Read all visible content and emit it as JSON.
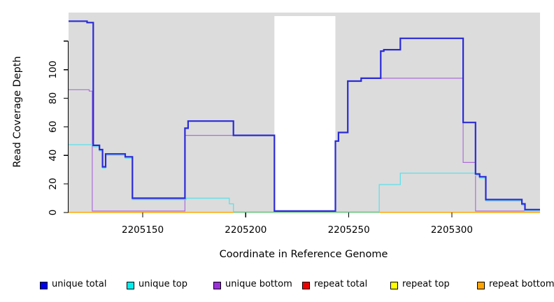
{
  "figure": {
    "x_label": "Coordinate in Reference Genome",
    "y_label": "Read Coverage Depth"
  },
  "chart_data": {
    "type": "line",
    "subtype": "step-coverage-depth",
    "title": "",
    "xlabel": "Coordinate in Reference Genome",
    "ylabel": "Read Coverage Depth",
    "xlim": [
      2205114,
      2205342.8
    ],
    "ylim": [
      0,
      140
    ],
    "grid": false,
    "legend_position": "bottom",
    "panel_background": "#DCDCDC",
    "gap_region": {
      "x1": 2205213.9,
      "x2": 2205243.5,
      "color": "#FFFFFF",
      "note_value_top": 137
    },
    "x_ticks": [
      {
        "value": 2205150,
        "label": "2205150"
      },
      {
        "value": 2205200,
        "label": "2205200"
      },
      {
        "value": 2205250,
        "label": "2205250"
      },
      {
        "value": 2205300,
        "label": "2205300"
      }
    ],
    "y_ticks": [
      {
        "value": 0,
        "label": "0"
      },
      {
        "value": 20,
        "label": "20"
      },
      {
        "value": 40,
        "label": "40"
      },
      {
        "value": 60,
        "label": "60"
      },
      {
        "value": 80,
        "label": "80"
      },
      {
        "value": 100,
        "label": "100"
      },
      {
        "value": 120,
        "label": ""
      }
    ],
    "series": [
      {
        "name": "unique total",
        "color": "#2A2AD8",
        "width": 2.2,
        "points": [
          [
            2205114,
            134
          ],
          [
            2205123,
            134
          ],
          [
            2205123,
            133
          ],
          [
            2205126,
            133
          ],
          [
            2205126,
            47
          ],
          [
            2205129,
            47
          ],
          [
            2205129,
            44
          ],
          [
            2205130.5,
            44
          ],
          [
            2205130.5,
            32
          ],
          [
            2205132,
            32
          ],
          [
            2205132,
            41
          ],
          [
            2205141.5,
            41
          ],
          [
            2205141.5,
            39
          ],
          [
            2205145,
            39
          ],
          [
            2205145,
            10
          ],
          [
            2205170.5,
            10
          ],
          [
            2205170.5,
            59
          ],
          [
            2205172,
            59
          ],
          [
            2205172,
            64
          ],
          [
            2205194,
            64
          ],
          [
            2205194,
            54
          ],
          [
            2205213.9,
            54
          ],
          [
            2205213.9,
            1
          ],
          [
            2205243.5,
            1
          ],
          [
            2205243.5,
            50
          ],
          [
            2205245,
            50
          ],
          [
            2205245,
            56
          ],
          [
            2205249.5,
            56
          ],
          [
            2205249.5,
            92
          ],
          [
            2205256,
            92
          ],
          [
            2205256,
            94
          ],
          [
            2205265.5,
            94
          ],
          [
            2205265.5,
            113
          ],
          [
            2205267,
            113
          ],
          [
            2205267,
            114
          ],
          [
            2205275,
            114
          ],
          [
            2205275,
            122
          ],
          [
            2205305.5,
            122
          ],
          [
            2205305.5,
            63
          ],
          [
            2205311.5,
            63
          ],
          [
            2205311.5,
            27
          ],
          [
            2205313.5,
            27
          ],
          [
            2205313.5,
            25
          ],
          [
            2205316.5,
            25
          ],
          [
            2205316.5,
            9
          ],
          [
            2205334,
            9
          ],
          [
            2205334,
            6
          ],
          [
            2205335.5,
            6
          ],
          [
            2205335.5,
            2
          ],
          [
            2205342.8,
            2
          ]
        ]
      },
      {
        "name": "unique top",
        "color": "#66E0E8",
        "width": 1.4,
        "points": [
          [
            2205114,
            47.5
          ],
          [
            2205126,
            47.5
          ],
          [
            2205126,
            46
          ],
          [
            2205129,
            46
          ],
          [
            2205129,
            43
          ],
          [
            2205130.5,
            43
          ],
          [
            2205130.5,
            31
          ],
          [
            2205132,
            31
          ],
          [
            2205132,
            40
          ],
          [
            2205141.5,
            40
          ],
          [
            2205141.5,
            38
          ],
          [
            2205145,
            38
          ],
          [
            2205145,
            9
          ],
          [
            2205171,
            9
          ],
          [
            2205171,
            10
          ],
          [
            2205192,
            10
          ],
          [
            2205192,
            6
          ],
          [
            2205194,
            6
          ],
          [
            2205194,
            0.5
          ],
          [
            2205264.8,
            0.5
          ],
          [
            2205264.8,
            19.5
          ],
          [
            2205275,
            19.5
          ],
          [
            2205275,
            27.5
          ],
          [
            2205311.5,
            27.5
          ],
          [
            2205311.5,
            26
          ],
          [
            2205313.5,
            26
          ],
          [
            2205313.5,
            24
          ],
          [
            2205316.5,
            24
          ],
          [
            2205316.5,
            8
          ],
          [
            2205334,
            8
          ],
          [
            2205334,
            5
          ],
          [
            2205335.5,
            5
          ],
          [
            2205335.5,
            1
          ],
          [
            2205342.8,
            1
          ]
        ]
      },
      {
        "name": "unique bottom",
        "color": "#AE6CDC",
        "width": 1.2,
        "points": [
          [
            2205114,
            86
          ],
          [
            2205124,
            86
          ],
          [
            2205124,
            85
          ],
          [
            2205125.5,
            85
          ],
          [
            2205125.5,
            1
          ],
          [
            2205170.5,
            1
          ],
          [
            2205170.5,
            54
          ],
          [
            2205213.9,
            54
          ],
          [
            2205213.9,
            1
          ],
          [
            2205243.5,
            1
          ],
          [
            2205243.5,
            50
          ],
          [
            2205245,
            50
          ],
          [
            2205245,
            56
          ],
          [
            2205249.5,
            56
          ],
          [
            2205249.5,
            92
          ],
          [
            2205256,
            92
          ],
          [
            2205256,
            94
          ],
          [
            2205305.5,
            94
          ],
          [
            2205305.5,
            35
          ],
          [
            2205311.5,
            35
          ],
          [
            2205311.5,
            1
          ],
          [
            2205342.8,
            1
          ]
        ]
      },
      {
        "name": "repeat total",
        "color": "#DD0000",
        "width": 1.2,
        "points": [
          [
            2205114,
            0
          ],
          [
            2205342.8,
            0
          ]
        ]
      },
      {
        "name": "repeat top",
        "color": "#F5F500",
        "width": 1.2,
        "points": [
          [
            2205114,
            0
          ],
          [
            2205342.8,
            0
          ]
        ]
      },
      {
        "name": "repeat bottom",
        "color": "#FFA500",
        "width": 1.3,
        "points": [
          [
            2205114,
            0
          ],
          [
            2205342.8,
            0
          ]
        ]
      }
    ],
    "baseline_overlay": {
      "comment": "green blended zero-line segment",
      "color": "#5CBD68",
      "x1": 2205194,
      "x2": 2205264.8,
      "value": 0.2
    },
    "legend": [
      {
        "label": "unique total",
        "color": "#0000EE"
      },
      {
        "label": "unique top",
        "color": "#00EEEE"
      },
      {
        "label": "unique bottom",
        "color": "#9B30DB"
      },
      {
        "label": "repeat total",
        "color": "#EE0000"
      },
      {
        "label": "repeat top",
        "color": "#FFFF00"
      },
      {
        "label": "repeat bottom",
        "color": "#FFA500"
      }
    ]
  }
}
